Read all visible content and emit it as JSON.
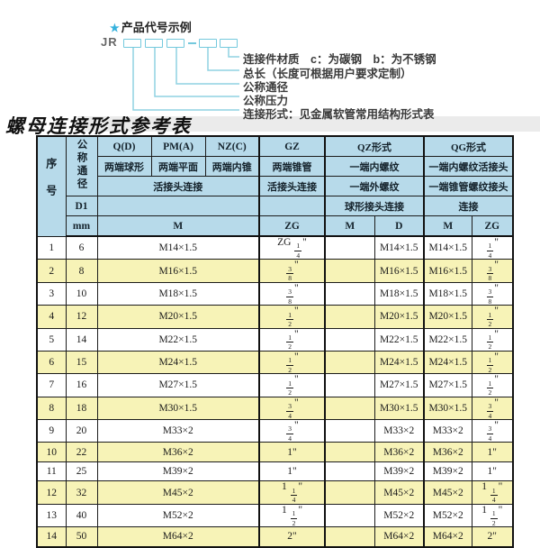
{
  "diagram": {
    "star": "★",
    "title": "产品代号示例",
    "prefix": "JR",
    "labels": [
      "连接件材质　c：为碳钢　b：为不锈钢",
      "总长（长度可根据用户要求定制）",
      "公称通径",
      "公称压力",
      "连接形式：见金属软管常用结构形式表"
    ]
  },
  "section_title": "螺母连接形式参考表",
  "table": {
    "header": {
      "no": "序号",
      "dn": "公称通径",
      "d1": "D1",
      "mm": "mm",
      "q": "Q(D)",
      "q_sub": "两端球形",
      "pm": "PM(A)",
      "pm_sub": "两端平面",
      "nz": "NZ(C)",
      "nz_sub": "两端内锥",
      "m_row3": "活接头连接",
      "m_unit": "M",
      "gz": "GZ",
      "gz_sub": "两端锥管",
      "gz_row3": "活接头连接",
      "gz_unit": "ZG",
      "qz": "QZ形式",
      "qz_sub": "一端内螺纹",
      "qz_row3": "一端外螺纹",
      "qz_row4": "球形接头连接",
      "qz_m": "M",
      "qz_d": "D",
      "qg": "QG形式",
      "qg_sub": "一端内螺纹活接头",
      "qg_row3": "一端锥管螺纹接头",
      "qg_row4": "连接",
      "qg_m": "M",
      "qg_zg": "ZG"
    },
    "rows": [
      {
        "no": "1",
        "dn": "6",
        "m": "M14×1.5",
        "gz": "ZG 1/4\"",
        "qz_m": "",
        "qz_d": "M14×1.5",
        "qg_m": "M14×1.5",
        "qg_zg": "1/4\""
      },
      {
        "no": "2",
        "dn": "8",
        "m": "M16×1.5",
        "gz": "3/8\"",
        "qz_m": "",
        "qz_d": "M16×1.5",
        "qg_m": "M16×1.5",
        "qg_zg": "3/8\""
      },
      {
        "no": "3",
        "dn": "10",
        "m": "M18×1.5",
        "gz": "3/8\"",
        "qz_m": "",
        "qz_d": "M18×1.5",
        "qg_m": "M18×1.5",
        "qg_zg": "3/8\""
      },
      {
        "no": "4",
        "dn": "12",
        "m": "M20×1.5",
        "gz": "1/2\"",
        "qz_m": "",
        "qz_d": "M20×1.5",
        "qg_m": "M20×1.5",
        "qg_zg": "1/2\""
      },
      {
        "no": "5",
        "dn": "14",
        "m": "M22×1.5",
        "gz": "1/2\"",
        "qz_m": "",
        "qz_d": "M22×1.5",
        "qg_m": "M22×1.5",
        "qg_zg": "1/2\""
      },
      {
        "no": "6",
        "dn": "15",
        "m": "M24×1.5",
        "gz": "1/2\"",
        "qz_m": "",
        "qz_d": "M24×1.5",
        "qg_m": "M24×1.5",
        "qg_zg": "1/2\""
      },
      {
        "no": "7",
        "dn": "16",
        "m": "M27×1.5",
        "gz": "1/2\"",
        "qz_m": "",
        "qz_d": "M27×1.5",
        "qg_m": "M27×1.5",
        "qg_zg": "1/2\""
      },
      {
        "no": "8",
        "dn": "18",
        "m": "M30×1.5",
        "gz": "3/4\"",
        "qz_m": "",
        "qz_d": "M30×1.5",
        "qg_m": "M30×1.5",
        "qg_zg": "3/4\""
      },
      {
        "no": "9",
        "dn": "20",
        "m": "M33×2",
        "gz": "3/4\"",
        "qz_m": "",
        "qz_d": "M33×2",
        "qg_m": "M33×2",
        "qg_zg": "3/4\""
      },
      {
        "no": "10",
        "dn": "22",
        "m": "M36×2",
        "gz": "1\"",
        "qz_m": "",
        "qz_d": "M36×2",
        "qg_m": "M36×2",
        "qg_zg": "1\""
      },
      {
        "no": "11",
        "dn": "25",
        "m": "M39×2",
        "gz": "1\"",
        "qz_m": "",
        "qz_d": "M39×2",
        "qg_m": "M39×2",
        "qg_zg": "1\""
      },
      {
        "no": "12",
        "dn": "32",
        "m": "M45×2",
        "gz": "1 1/4\"",
        "qz_m": "",
        "qz_d": "M45×2",
        "qg_m": "M45×2",
        "qg_zg": "1 1/4\""
      },
      {
        "no": "13",
        "dn": "40",
        "m": "M52×2",
        "gz": "1 1/2\"",
        "qz_m": "",
        "qz_d": "M52×2",
        "qg_m": "M52×2",
        "qg_zg": "1 1/2\""
      },
      {
        "no": "14",
        "dn": "50",
        "m": "M64×2",
        "gz": "2\"",
        "qz_m": "",
        "qz_d": "M64×2",
        "qg_m": "M64×2",
        "qg_zg": "2\""
      }
    ]
  },
  "colors": {
    "header_bg": "#b7daea",
    "row_alt_bg": "#f7f3b7",
    "accent_cyan": "#74c9dd",
    "star_blue": "#35b1dd",
    "border": "#1c1c1c"
  }
}
